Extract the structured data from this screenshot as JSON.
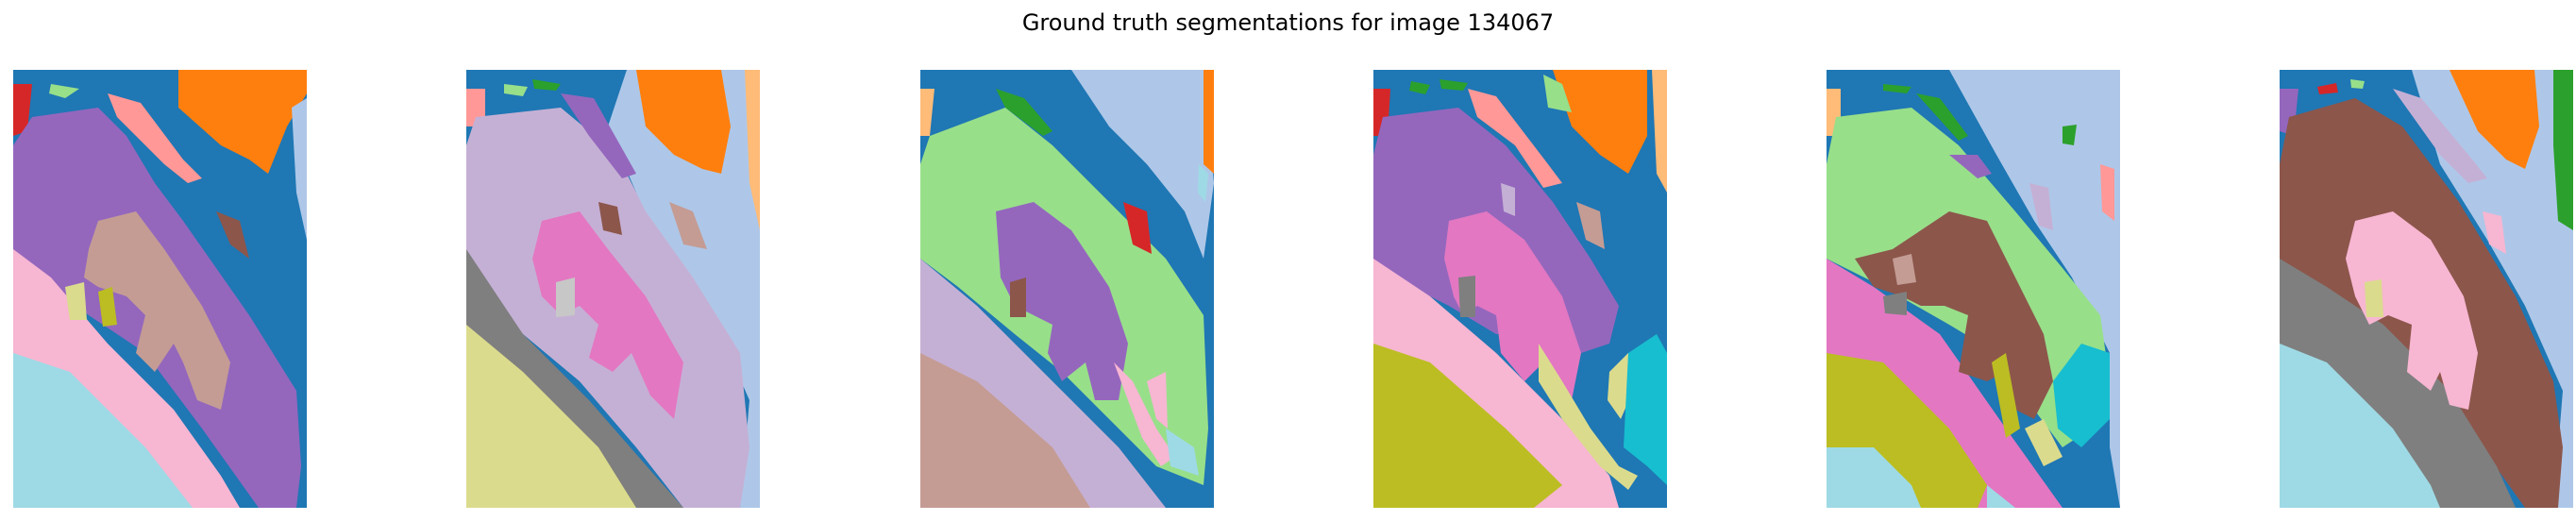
{
  "figure": {
    "title": "Ground truth segmentations for image 134067"
  },
  "palette": {
    "blue": "#1f77b4",
    "light_blue": "#aec7e8",
    "orange": "#ff7f0e",
    "light_orange": "#ffbb78",
    "green": "#2ca02c",
    "light_green": "#98df8a",
    "red": "#d62728",
    "pink_salmon": "#ff9896",
    "purple": "#9467bd",
    "lavender": "#c5b0d5",
    "brown": "#8c564b",
    "tan": "#c49c94",
    "pink": "#e377c2",
    "light_pink": "#f7b6d2",
    "gray": "#7f7f7f",
    "light_gray": "#c7c7c7",
    "olive": "#bcbd22",
    "khaki": "#dbdb8d",
    "cyan": "#17becf",
    "light_cyan": "#9edae5"
  },
  "panels": [
    {
      "name": "segmentation-1"
    },
    {
      "name": "segmentation-2"
    },
    {
      "name": "segmentation-3"
    },
    {
      "name": "segmentation-4"
    },
    {
      "name": "segmentation-5"
    },
    {
      "name": "segmentation-6"
    }
  ]
}
